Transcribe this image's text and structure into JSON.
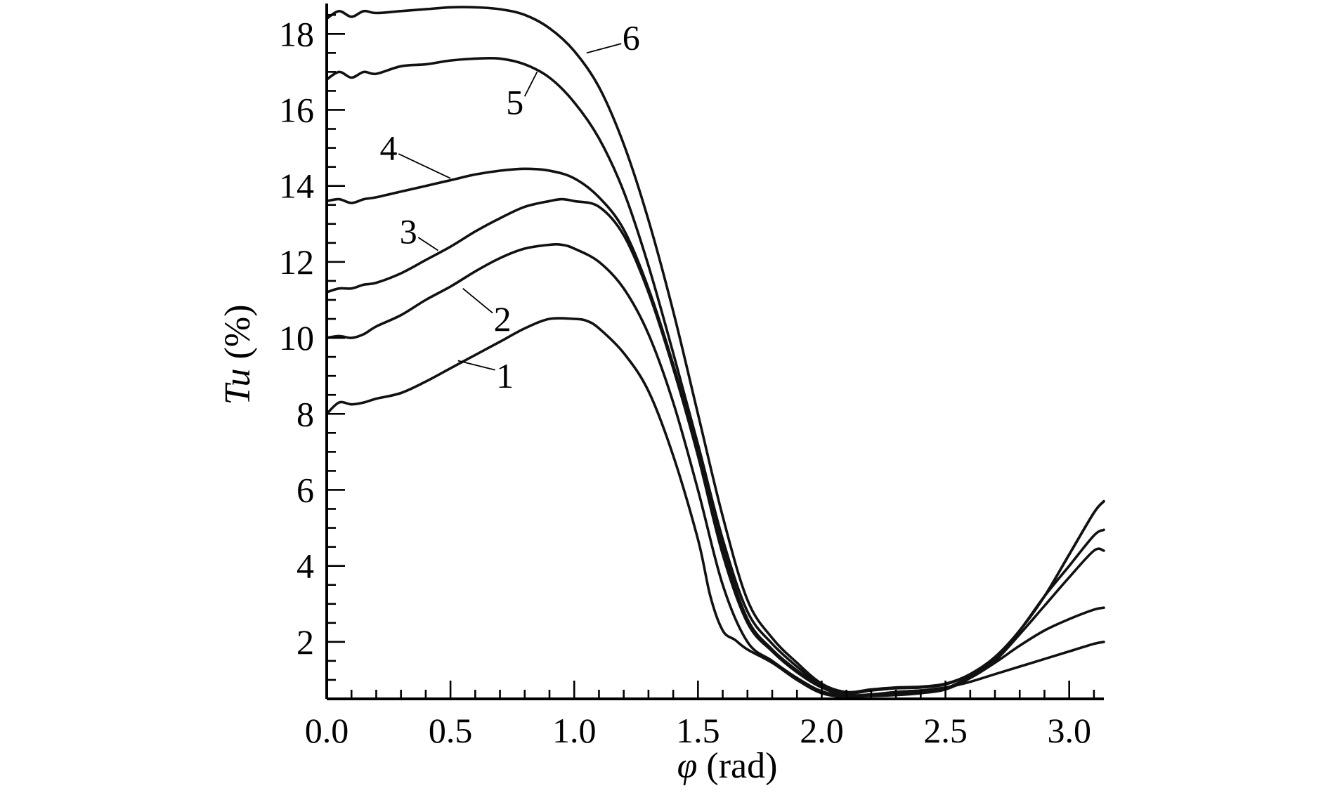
{
  "chart_data": {
    "type": "line",
    "xlabel_symbol": "φ",
    "xlabel_unit": "(rad)",
    "ylabel_symbol": "Tu",
    "ylabel_unit": "(%)",
    "xlim": [
      0,
      3.14
    ],
    "ylim": [
      0.5,
      18.8
    ],
    "x_ticks": [
      "0.0",
      "0.5",
      "1.0",
      "1.5",
      "2.0",
      "2.5",
      "3.0"
    ],
    "y_ticks": [
      "2",
      "4",
      "6",
      "8",
      "10",
      "12",
      "14",
      "16",
      "18"
    ],
    "grid": false,
    "legend": "none",
    "series": [
      {
        "name": "1",
        "points": [
          [
            0,
            8.0
          ],
          [
            0.05,
            8.3
          ],
          [
            0.1,
            8.25
          ],
          [
            0.15,
            8.3
          ],
          [
            0.2,
            8.4
          ],
          [
            0.3,
            8.55
          ],
          [
            0.4,
            8.85
          ],
          [
            0.5,
            9.2
          ],
          [
            0.6,
            9.55
          ],
          [
            0.7,
            9.9
          ],
          [
            0.8,
            10.25
          ],
          [
            0.9,
            10.5
          ],
          [
            1.0,
            10.5
          ],
          [
            1.05,
            10.45
          ],
          [
            1.1,
            10.25
          ],
          [
            1.2,
            9.6
          ],
          [
            1.3,
            8.6
          ],
          [
            1.4,
            6.9
          ],
          [
            1.5,
            4.7
          ],
          [
            1.55,
            3.2
          ],
          [
            1.6,
            2.3
          ],
          [
            1.65,
            2.05
          ],
          [
            1.7,
            1.8
          ],
          [
            1.8,
            1.45
          ],
          [
            1.9,
            1.0
          ],
          [
            2.0,
            0.65
          ],
          [
            2.1,
            0.55
          ],
          [
            2.2,
            0.6
          ],
          [
            2.3,
            0.68
          ],
          [
            2.4,
            0.72
          ],
          [
            2.5,
            0.8
          ],
          [
            2.6,
            0.95
          ],
          [
            2.7,
            1.15
          ],
          [
            2.8,
            1.35
          ],
          [
            2.9,
            1.55
          ],
          [
            3.0,
            1.75
          ],
          [
            3.1,
            1.95
          ],
          [
            3.14,
            2.0
          ]
        ]
      },
      {
        "name": "2",
        "points": [
          [
            0,
            10.0
          ],
          [
            0.05,
            10.05
          ],
          [
            0.1,
            10.0
          ],
          [
            0.15,
            10.1
          ],
          [
            0.2,
            10.3
          ],
          [
            0.3,
            10.6
          ],
          [
            0.4,
            11.0
          ],
          [
            0.5,
            11.35
          ],
          [
            0.6,
            11.75
          ],
          [
            0.7,
            12.1
          ],
          [
            0.8,
            12.35
          ],
          [
            0.9,
            12.45
          ],
          [
            0.95,
            12.45
          ],
          [
            1.0,
            12.35
          ],
          [
            1.1,
            12.0
          ],
          [
            1.2,
            11.3
          ],
          [
            1.3,
            10.1
          ],
          [
            1.4,
            8.3
          ],
          [
            1.5,
            6.0
          ],
          [
            1.6,
            3.5
          ],
          [
            1.7,
            2.0
          ],
          [
            1.8,
            1.5
          ],
          [
            1.9,
            1.05
          ],
          [
            2.0,
            0.7
          ],
          [
            2.1,
            0.58
          ],
          [
            2.2,
            0.58
          ],
          [
            2.3,
            0.62
          ],
          [
            2.4,
            0.68
          ],
          [
            2.5,
            0.78
          ],
          [
            2.6,
            1.05
          ],
          [
            2.7,
            1.45
          ],
          [
            2.8,
            1.9
          ],
          [
            2.9,
            2.3
          ],
          [
            3.0,
            2.6
          ],
          [
            3.1,
            2.85
          ],
          [
            3.14,
            2.9
          ]
        ]
      },
      {
        "name": "3",
        "points": [
          [
            0,
            11.2
          ],
          [
            0.05,
            11.3
          ],
          [
            0.1,
            11.3
          ],
          [
            0.15,
            11.4
          ],
          [
            0.2,
            11.45
          ],
          [
            0.3,
            11.7
          ],
          [
            0.4,
            12.05
          ],
          [
            0.5,
            12.4
          ],
          [
            0.6,
            12.8
          ],
          [
            0.7,
            13.15
          ],
          [
            0.8,
            13.45
          ],
          [
            0.9,
            13.6
          ],
          [
            0.95,
            13.65
          ],
          [
            1.0,
            13.6
          ],
          [
            1.1,
            13.45
          ],
          [
            1.2,
            12.7
          ],
          [
            1.3,
            11.2
          ],
          [
            1.4,
            9.2
          ],
          [
            1.5,
            6.9
          ],
          [
            1.6,
            4.3
          ],
          [
            1.7,
            2.5
          ],
          [
            1.8,
            1.75
          ],
          [
            1.9,
            1.2
          ],
          [
            2.0,
            0.8
          ],
          [
            2.1,
            0.6
          ],
          [
            2.2,
            0.58
          ],
          [
            2.3,
            0.6
          ],
          [
            2.4,
            0.65
          ],
          [
            2.5,
            0.75
          ],
          [
            2.6,
            1.05
          ],
          [
            2.7,
            1.5
          ],
          [
            2.8,
            2.2
          ],
          [
            2.9,
            2.95
          ],
          [
            3.0,
            3.7
          ],
          [
            3.1,
            4.4
          ],
          [
            3.14,
            4.4
          ]
        ]
      },
      {
        "name": "4",
        "points": [
          [
            0,
            13.6
          ],
          [
            0.05,
            13.65
          ],
          [
            0.1,
            13.55
          ],
          [
            0.15,
            13.65
          ],
          [
            0.2,
            13.7
          ],
          [
            0.3,
            13.85
          ],
          [
            0.4,
            14.0
          ],
          [
            0.5,
            14.15
          ],
          [
            0.6,
            14.3
          ],
          [
            0.7,
            14.4
          ],
          [
            0.8,
            14.45
          ],
          [
            0.9,
            14.4
          ],
          [
            1.0,
            14.2
          ],
          [
            1.1,
            13.7
          ],
          [
            1.2,
            12.85
          ],
          [
            1.3,
            11.3
          ],
          [
            1.4,
            9.3
          ],
          [
            1.5,
            7.0
          ],
          [
            1.6,
            4.5
          ],
          [
            1.7,
            2.6
          ],
          [
            1.8,
            1.8
          ],
          [
            1.9,
            1.25
          ],
          [
            2.0,
            0.8
          ],
          [
            2.1,
            0.6
          ],
          [
            2.2,
            0.62
          ],
          [
            2.3,
            0.68
          ],
          [
            2.4,
            0.72
          ],
          [
            2.5,
            0.78
          ],
          [
            2.6,
            1.1
          ],
          [
            2.7,
            1.55
          ],
          [
            2.8,
            2.3
          ],
          [
            2.9,
            3.2
          ],
          [
            3.0,
            4.0
          ],
          [
            3.1,
            4.8
          ],
          [
            3.14,
            4.95
          ]
        ]
      },
      {
        "name": "5",
        "points": [
          [
            0,
            16.8
          ],
          [
            0.05,
            17.0
          ],
          [
            0.1,
            16.85
          ],
          [
            0.15,
            17.0
          ],
          [
            0.2,
            16.95
          ],
          [
            0.3,
            17.15
          ],
          [
            0.4,
            17.2
          ],
          [
            0.5,
            17.3
          ],
          [
            0.6,
            17.35
          ],
          [
            0.7,
            17.35
          ],
          [
            0.8,
            17.2
          ],
          [
            0.9,
            16.85
          ],
          [
            1.0,
            16.2
          ],
          [
            1.1,
            15.25
          ],
          [
            1.2,
            13.85
          ],
          [
            1.3,
            11.9
          ],
          [
            1.4,
            9.6
          ],
          [
            1.5,
            7.2
          ],
          [
            1.6,
            4.7
          ],
          [
            1.7,
            2.8
          ],
          [
            1.8,
            1.95
          ],
          [
            1.9,
            1.35
          ],
          [
            2.0,
            0.85
          ],
          [
            2.1,
            0.65
          ],
          [
            2.2,
            0.72
          ],
          [
            2.3,
            0.78
          ],
          [
            2.4,
            0.8
          ],
          [
            2.5,
            0.88
          ],
          [
            2.6,
            1.15
          ],
          [
            2.7,
            1.6
          ],
          [
            2.8,
            2.3
          ],
          [
            2.9,
            3.2
          ],
          [
            3.0,
            4.3
          ],
          [
            3.1,
            5.4
          ],
          [
            3.14,
            5.7
          ]
        ]
      },
      {
        "name": "6",
        "points": [
          [
            0,
            18.4
          ],
          [
            0.05,
            18.6
          ],
          [
            0.1,
            18.45
          ],
          [
            0.15,
            18.6
          ],
          [
            0.2,
            18.55
          ],
          [
            0.3,
            18.6
          ],
          [
            0.4,
            18.65
          ],
          [
            0.5,
            18.7
          ],
          [
            0.6,
            18.7
          ],
          [
            0.7,
            18.65
          ],
          [
            0.8,
            18.5
          ],
          [
            0.9,
            18.15
          ],
          [
            1.0,
            17.55
          ],
          [
            1.1,
            16.6
          ],
          [
            1.2,
            15.1
          ],
          [
            1.3,
            13.1
          ],
          [
            1.4,
            10.7
          ],
          [
            1.5,
            8.0
          ],
          [
            1.6,
            5.3
          ],
          [
            1.7,
            3.1
          ],
          [
            1.8,
            2.1
          ],
          [
            1.9,
            1.45
          ],
          [
            2.0,
            0.9
          ],
          [
            2.1,
            0.68
          ],
          [
            2.2,
            0.75
          ],
          [
            2.3,
            0.8
          ],
          [
            2.4,
            0.82
          ],
          [
            2.5,
            0.9
          ],
          [
            2.6,
            1.15
          ],
          [
            2.7,
            1.6
          ],
          [
            2.8,
            2.3
          ],
          [
            2.9,
            3.2
          ],
          [
            3.0,
            4.3
          ],
          [
            3.1,
            5.4
          ],
          [
            3.14,
            5.7
          ]
        ]
      }
    ],
    "annotations": [
      {
        "label": "1",
        "at": [
          0.53,
          9.4
        ],
        "text": [
          0.72,
          9.0
        ]
      },
      {
        "label": "2",
        "at": [
          0.55,
          11.3
        ],
        "text": [
          0.71,
          10.5
        ]
      },
      {
        "label": "3",
        "at": [
          0.45,
          12.3
        ],
        "text": [
          0.33,
          12.8
        ]
      },
      {
        "label": "4",
        "at": [
          0.5,
          14.2
        ],
        "text": [
          0.25,
          15.0
        ]
      },
      {
        "label": "5",
        "at": [
          0.85,
          17.0
        ],
        "text": [
          0.76,
          16.2
        ]
      },
      {
        "label": "6",
        "at": [
          1.05,
          17.5
        ],
        "text": [
          1.23,
          17.9
        ]
      }
    ]
  }
}
